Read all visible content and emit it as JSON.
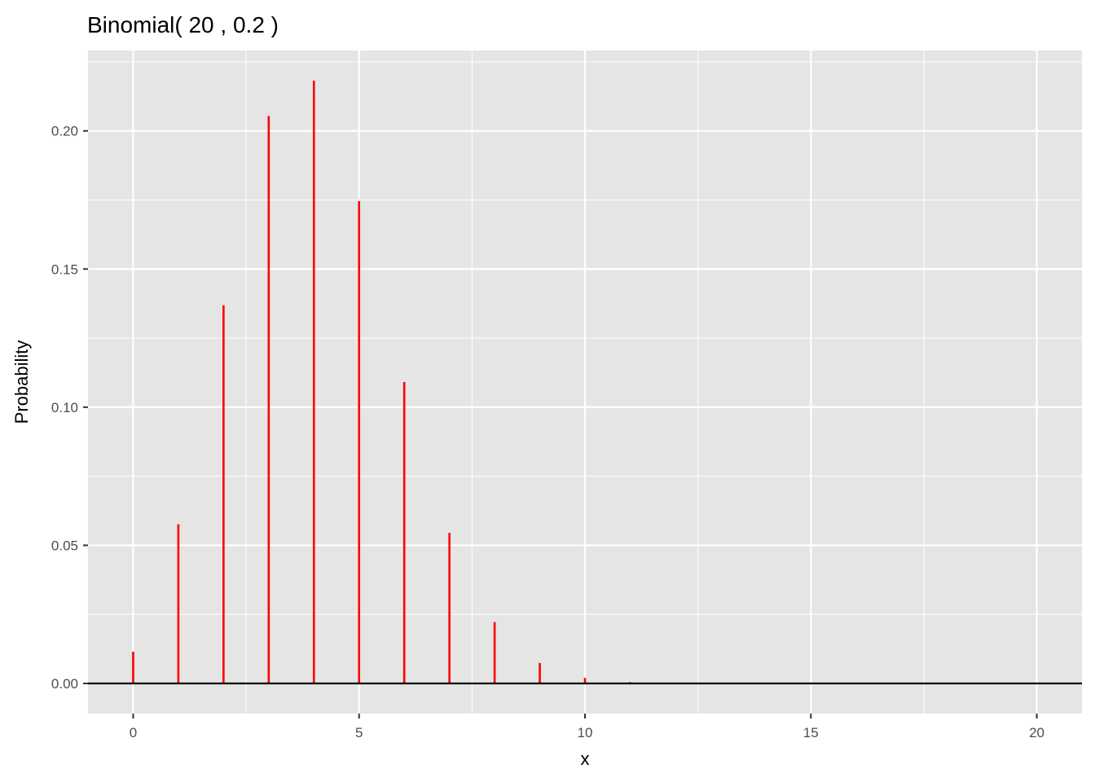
{
  "chart_data": {
    "type": "bar",
    "style": "lollipop-lines",
    "title": "Binomial( 20 , 0.2 )",
    "xlabel": "x",
    "ylabel": "Probability",
    "x": [
      0,
      1,
      2,
      3,
      4,
      5,
      6,
      7,
      8,
      9,
      10,
      11,
      12,
      13,
      14,
      15,
      16,
      17,
      18,
      19,
      20
    ],
    "values": [
      0.0115,
      0.0576,
      0.1369,
      0.2054,
      0.2182,
      0.1746,
      0.1091,
      0.0545,
      0.0222,
      0.0074,
      0.002,
      0.0005,
      0.0001,
      0.0,
      0.0,
      0.0,
      0.0,
      0.0,
      0.0,
      0.0,
      0.0
    ],
    "xlim": [
      -1,
      21
    ],
    "ylim": [
      -0.0109,
      0.2291
    ],
    "x_ticks": [
      0,
      5,
      10,
      15,
      20
    ],
    "x_tick_labels": [
      "0",
      "5",
      "10",
      "15",
      "20"
    ],
    "y_ticks": [
      0,
      0.05,
      0.1,
      0.15,
      0.2
    ],
    "y_tick_labels": [
      "0.00",
      "0.05",
      "0.10",
      "0.15",
      "0.20"
    ],
    "grid": true,
    "hline_y": 0,
    "colors": {
      "series": "#ff0000",
      "panel_bg": "#e5e5e5",
      "grid": "#ffffff",
      "hline": "#000000",
      "tick_text": "#4d4d4d"
    }
  }
}
